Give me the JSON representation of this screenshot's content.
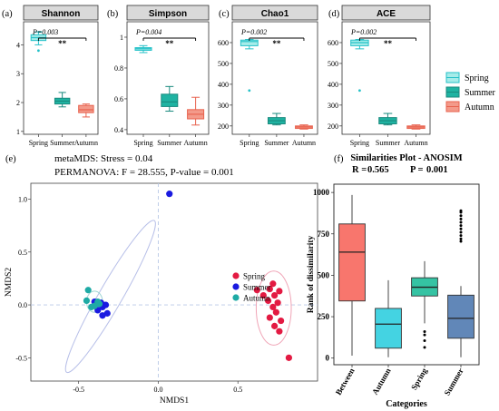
{
  "colors": {
    "spring_fill": "#a6ece9",
    "spring_line": "#25c1c8",
    "summer_fill": "#1fb3a2",
    "summer_line": "#198a7e",
    "autumn_fill": "#f39a8a",
    "autumn_line": "#e8624e",
    "strip_fill": "#d9d9d9",
    "nmds_spring": "#e31a42",
    "nmds_summer": "#1a1ae0",
    "nmds_autumn": "#1eaaa5",
    "anosim_between": "#f8766d",
    "anosim_autumn": "#44d3e2",
    "anosim_spring": "#35c3a3",
    "anosim_summer": "#6187b8"
  },
  "panel_labels": {
    "a": "(a)",
    "b": "(b)",
    "c": "(c)",
    "d": "(d)",
    "e": "(e)",
    "f": "(f)"
  },
  "alpha_legend": [
    "Spring",
    "Summer",
    "Autumn"
  ],
  "nmds_info": {
    "line1": "metaMDS: Stress = 0.04",
    "line2": "PERMANOVA: F = 28.555, P-value = 0.001"
  },
  "chart_data": [
    {
      "type": "box",
      "strip": "Shannon",
      "categories": [
        "Spring",
        "Summer",
        "Autumn"
      ],
      "yticks": [
        1,
        2,
        3,
        4
      ],
      "ylim": [
        0.9,
        4.8
      ],
      "boxes": [
        {
          "min": 4.0,
          "q1": 4.15,
          "median": 4.25,
          "q3": 4.35,
          "max": 4.45,
          "outliers": [
            3.8
          ]
        },
        {
          "min": 1.85,
          "q1": 1.95,
          "median": 2.05,
          "q3": 2.15,
          "max": 2.35,
          "outliers": []
        },
        {
          "min": 1.5,
          "q1": 1.65,
          "median": 1.75,
          "q3": 1.9,
          "max": 1.95,
          "outliers": []
        }
      ],
      "annotation": "P=0.003",
      "significance": "**"
    },
    {
      "type": "box",
      "strip": "Simpson",
      "categories": [
        "Spring",
        "Summer",
        "Autumn"
      ],
      "yticks": [
        0.4,
        0.6,
        0.8,
        1.0
      ],
      "ylim": [
        0.37,
        1.1
      ],
      "boxes": [
        {
          "min": 0.9,
          "q1": 0.915,
          "median": 0.925,
          "q3": 0.932,
          "max": 0.945,
          "outliers": []
        },
        {
          "min": 0.52,
          "q1": 0.55,
          "median": 0.58,
          "q3": 0.63,
          "max": 0.68,
          "outliers": []
        },
        {
          "min": 0.43,
          "q1": 0.47,
          "median": 0.5,
          "q3": 0.53,
          "max": 0.61,
          "outliers": []
        }
      ],
      "annotation": "P=0.004",
      "significance": "**"
    },
    {
      "type": "box",
      "strip": "Chao1",
      "categories": [
        "Spring",
        "Summer",
        "Autumn"
      ],
      "yticks": [
        200,
        300,
        400,
        500,
        600
      ],
      "ylim": [
        160,
        700
      ],
      "boxes": [
        {
          "min": 570,
          "q1": 585,
          "median": 605,
          "q3": 612,
          "max": 615,
          "outliers": [
            370
          ]
        },
        {
          "min": 205,
          "q1": 210,
          "median": 225,
          "q3": 240,
          "max": 260,
          "outliers": []
        },
        {
          "min": 185,
          "q1": 188,
          "median": 195,
          "q3": 200,
          "max": 205,
          "outliers": []
        }
      ],
      "annotation": "P=0.002",
      "significance": "**"
    },
    {
      "type": "box",
      "strip": "ACE",
      "categories": [
        "Spring",
        "Summer",
        "Autumn"
      ],
      "yticks": [
        200,
        300,
        400,
        500,
        600
      ],
      "ylim": [
        160,
        700
      ],
      "boxes": [
        {
          "min": 570,
          "q1": 585,
          "median": 600,
          "q3": 612,
          "max": 615,
          "outliers": [
            370
          ]
        },
        {
          "min": 205,
          "q1": 210,
          "median": 225,
          "q3": 240,
          "max": 260,
          "outliers": []
        },
        {
          "min": 185,
          "q1": 188,
          "median": 195,
          "q3": 200,
          "max": 205,
          "outliers": []
        }
      ],
      "annotation": "P=0.002",
      "significance": "**"
    },
    {
      "type": "scatter",
      "xlabel": "NMDS1",
      "ylabel": "NMDS2",
      "xlim": [
        -0.8,
        1.0
      ],
      "ylim": [
        -0.72,
        1.15
      ],
      "xticks": [
        -0.5,
        0.0,
        0.5
      ],
      "yticks": [
        -0.5,
        0.0,
        0.5,
        1.0
      ],
      "series": [
        {
          "name": "Spring",
          "points": [
            [
              0.62,
              0.14
            ],
            [
              0.66,
              0.09
            ],
            [
              0.7,
              0.15
            ],
            [
              0.73,
              0.09
            ],
            [
              0.76,
              0.13
            ],
            [
              0.69,
              0.04
            ],
            [
              0.72,
              -0.02
            ],
            [
              0.75,
              0.02
            ],
            [
              0.7,
              -0.12
            ],
            [
              0.74,
              -0.07
            ],
            [
              0.77,
              -0.15
            ],
            [
              0.73,
              -0.2
            ],
            [
              0.76,
              -0.25
            ],
            [
              0.72,
              0.2
            ],
            [
              0.82,
              -0.5
            ]
          ]
        },
        {
          "name": "Summer",
          "points": [
            [
              0.07,
              1.05
            ],
            [
              -0.35,
              -0.02
            ],
            [
              -0.32,
              -0.08
            ],
            [
              -0.38,
              -0.05
            ],
            [
              -0.36,
              0.02
            ],
            [
              -0.33,
              0.0
            ],
            [
              -0.4,
              0.03
            ],
            [
              -0.35,
              -0.1
            ]
          ]
        },
        {
          "name": "Autumn",
          "points": [
            [
              -0.44,
              0.14
            ],
            [
              -0.45,
              0.04
            ],
            [
              -0.38,
              0.03
            ],
            [
              -0.4,
              -0.01
            ],
            [
              -0.42,
              -0.02
            ],
            [
              -0.37,
              0.01
            ]
          ]
        }
      ],
      "ellipses": [
        {
          "series": "Spring",
          "cx": 0.725,
          "cy": -0.03,
          "rx": 0.11,
          "ry": 0.35
        },
        {
          "series": "Summer",
          "cx": -0.3,
          "cy": 0.08,
          "rx": 0.55,
          "ry": 0.11,
          "angle": 60
        },
        {
          "series": "Autumn",
          "cx": -0.4,
          "cy": 0.03,
          "rx": 0.05,
          "ry": 0.1
        }
      ]
    },
    {
      "type": "box",
      "title": "Similarities Plot - ANOSIM",
      "subtitle": {
        "r_label": "R =",
        "r_value": "0.565",
        "p_label": "P =",
        "p_value": "0.001"
      },
      "xlabel": "Categories",
      "ylabel": "Rank of dissimilarity",
      "categories": [
        "Between",
        "Autumn",
        "Spring",
        "Summer"
      ],
      "yticks": [
        0,
        250,
        500,
        750,
        1000
      ],
      "ylim": [
        -40,
        1050
      ],
      "boxes": [
        {
          "min": 15,
          "q1": 345,
          "median": 640,
          "q3": 810,
          "max": 985,
          "outliers": []
        },
        {
          "min": 5,
          "q1": 60,
          "median": 205,
          "q3": 300,
          "max": 470,
          "outliers": []
        },
        {
          "min": 210,
          "q1": 375,
          "median": 428,
          "q3": 485,
          "max": 585,
          "outliers": [
            140,
            105,
            65,
            160
          ]
        },
        {
          "min": 5,
          "q1": 120,
          "median": 240,
          "q3": 380,
          "max": 435,
          "outliers": [
            705,
            720,
            740,
            760,
            780,
            800,
            820,
            840,
            860,
            880,
            890
          ]
        }
      ]
    }
  ]
}
